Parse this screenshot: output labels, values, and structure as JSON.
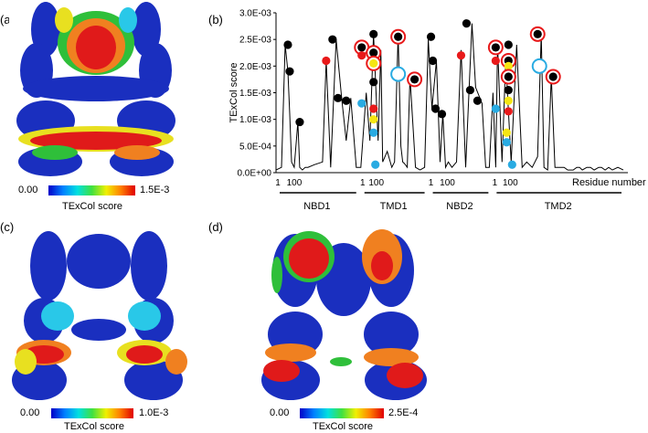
{
  "panels": {
    "a": {
      "label": "(a)",
      "cbar_min": "0.00",
      "cbar_max": "1.5E-3",
      "cbar_title": "TExCol score"
    },
    "b": {
      "label": "(b)"
    },
    "c": {
      "label": "(c)",
      "cbar_min": "0.00",
      "cbar_max": "1.0E-3",
      "cbar_title": "TExCol score"
    },
    "d": {
      "label": "(d)",
      "cbar_min": "0.00",
      "cbar_max": "2.5E-4",
      "cbar_title": "TExCol score"
    }
  },
  "colors": {
    "line": "#000000",
    "black_marker": "#000000",
    "red_marker": "#e8191a",
    "yellow_marker": "#f5e614",
    "blue_marker": "#29abe2",
    "ring_red": "#e8191a",
    "ring_blue": "#29abe2",
    "protein_blue": "#1a2fbf",
    "protein_red": "#e01a1a",
    "protein_orange": "#f08020",
    "protein_green": "#2fbf3a",
    "protein_yellow": "#e8e020",
    "protein_cyan": "#29c8e8"
  },
  "chart_data": {
    "type": "line",
    "ylabel": "TExCol score",
    "xlabel": "Residue number",
    "ylim": [
      0,
      0.003
    ],
    "yticks": [
      "0.0E+00",
      "5.0E-04",
      "1.0E-03",
      "1.5E-03",
      "2.0E-03",
      "2.5E-03",
      "3.0E-03"
    ],
    "domains": [
      {
        "name": "NBD1",
        "ticks": [
          "1",
          "100"
        ]
      },
      {
        "name": "TMD1",
        "ticks": [
          "1",
          "100"
        ]
      },
      {
        "name": "NBD2",
        "ticks": [
          "1",
          "100"
        ]
      },
      {
        "name": "TMD2",
        "ticks": [
          "1",
          "100"
        ]
      }
    ],
    "axis_tick_1": "1",
    "axis_tick_100": "100",
    "profile_x": [
      0,
      6,
      10,
      13,
      15,
      17,
      20,
      24,
      26,
      29,
      32,
      35,
      42,
      51,
      55,
      60,
      66,
      72,
      77,
      82,
      88,
      93,
      99,
      103,
      107,
      112,
      115,
      117,
      122,
      127,
      130,
      134,
      137,
      139,
      141,
      144,
      147,
      153,
      158,
      163,
      167,
      171,
      176,
      180,
      183,
      186,
      189,
      193,
      198,
      203,
      208,
      215,
      219,
      226,
      230,
      234,
      238,
      241,
      243,
      248,
      252,
      258,
      264,
      270,
      275,
      281,
      287,
      291,
      294,
      298,
      302,
      306,
      310,
      316,
      320,
      326,
      330,
      333,
      336,
      341,
      345,
      349,
      354,
      357,
      361,
      365,
      369,
      375,
      381
    ],
    "profile_y": [
      5e-05,
      0.0001,
      0.0024,
      0.0019,
      0.0011,
      0.0002,
      0.0001,
      0.00095,
      0.0001,
      5e-05,
      0.0001,
      0.0001,
      0.00015,
      0.0002,
      0.0021,
      0.0001,
      0.0025,
      0.0014,
      0.0006,
      0.0014,
      0.0001,
      0.0001,
      0.0015,
      0.0006,
      0.0026,
      0.0006,
      0.0023,
      0.0002,
      0.0004,
      0.0001,
      0.0002,
      0.0026,
      0.0005,
      0.0002,
      0.00017,
      0.0001,
      0.0018,
      0.0001,
      5e-05,
      0.0001,
      0.0025,
      0.0012,
      0.0021,
      0.0002,
      0.0011,
      0.0001,
      0.0002,
      0.0001,
      0.0002,
      0.0023,
      0.0001,
      0.0028,
      0.0016,
      0.0013,
      0.0001,
      0.0001,
      0.0015,
      0.0001,
      0.0024,
      0.0002,
      0.0021,
      0.0002,
      0.0024,
      0.0001,
      0.0002,
      0.0001,
      0.0003,
      0.0026,
      0.0001,
      5e-05,
      0.0018,
      0.0001,
      0.0001,
      0.0001,
      5e-05,
      5e-05,
      0.0001,
      0.0001,
      5e-05,
      0.0001,
      0.0001,
      5e-05,
      0.0001,
      0.0001,
      5e-05,
      0.0001,
      5e-05,
      0.0001,
      5e-05
    ],
    "markers": [
      {
        "x": 13,
        "y": 0.0024,
        "color": "black"
      },
      {
        "x": 15,
        "y": 0.0019,
        "color": "black"
      },
      {
        "x": 26,
        "y": 0.00095,
        "color": "black"
      },
      {
        "x": 55,
        "y": 0.0021,
        "color": "red"
      },
      {
        "x": 62,
        "y": 0.0025,
        "color": "black"
      },
      {
        "x": 68,
        "y": 0.0014,
        "color": "black"
      },
      {
        "x": 77,
        "y": 0.00135,
        "color": "black"
      },
      {
        "x": 94,
        "y": 0.00235,
        "color": "black",
        "ring": "red"
      },
      {
        "x": 94,
        "y": 0.0022,
        "color": "red"
      },
      {
        "x": 94,
        "y": 0.0013,
        "color": "blue"
      },
      {
        "x": 107,
        "y": 0.0026,
        "color": "black"
      },
      {
        "x": 107,
        "y": 0.00225,
        "color": "black",
        "ring": "red"
      },
      {
        "x": 107,
        "y": 0.00205,
        "color": "yellow",
        "ring": "red"
      },
      {
        "x": 107,
        "y": 0.0017,
        "color": "black"
      },
      {
        "x": 107,
        "y": 0.0012,
        "color": "red"
      },
      {
        "x": 107,
        "y": 0.001,
        "color": "yellow"
      },
      {
        "x": 107,
        "y": 0.00075,
        "color": "blue"
      },
      {
        "x": 109,
        "y": 0.00015,
        "color": "blue"
      },
      {
        "x": 134,
        "y": 0.00255,
        "color": "black",
        "ring": "red"
      },
      {
        "x": 134,
        "y": 0.00185,
        "ring": "blue"
      },
      {
        "x": 152,
        "y": 0.00175,
        "color": "black",
        "ring": "red"
      },
      {
        "x": 170,
        "y": 0.00255,
        "color": "black"
      },
      {
        "x": 172,
        "y": 0.0021,
        "color": "black"
      },
      {
        "x": 175,
        "y": 0.0012,
        "color": "black"
      },
      {
        "x": 182,
        "y": 0.0011,
        "color": "black"
      },
      {
        "x": 203,
        "y": 0.0022,
        "color": "red"
      },
      {
        "x": 209,
        "y": 0.0028,
        "color": "black"
      },
      {
        "x": 213,
        "y": 0.00155,
        "color": "black"
      },
      {
        "x": 221,
        "y": 0.00135,
        "color": "black"
      },
      {
        "x": 241,
        "y": 0.00235,
        "color": "black",
        "ring": "red"
      },
      {
        "x": 241,
        "y": 0.0021,
        "color": "red"
      },
      {
        "x": 241,
        "y": 0.0012,
        "color": "blue"
      },
      {
        "x": 255,
        "y": 0.0024,
        "color": "black"
      },
      {
        "x": 255,
        "y": 0.0021,
        "color": "black",
        "ring": "red"
      },
      {
        "x": 255,
        "y": 0.002,
        "color": "yellow"
      },
      {
        "x": 255,
        "y": 0.0018,
        "color": "black",
        "ring": "red"
      },
      {
        "x": 255,
        "y": 0.00155,
        "color": "black"
      },
      {
        "x": 255,
        "y": 0.00135,
        "color": "yellow"
      },
      {
        "x": 255,
        "y": 0.00115,
        "color": "red"
      },
      {
        "x": 253,
        "y": 0.00075,
        "color": "yellow"
      },
      {
        "x": 253,
        "y": 0.00057,
        "color": "blue"
      },
      {
        "x": 259,
        "y": 0.00015,
        "color": "blue"
      },
      {
        "x": 287,
        "y": 0.0026,
        "color": "black",
        "ring": "red"
      },
      {
        "x": 289,
        "y": 0.002,
        "ring": "blue"
      },
      {
        "x": 304,
        "y": 0.0018,
        "color": "black",
        "ring": "red"
      }
    ]
  }
}
